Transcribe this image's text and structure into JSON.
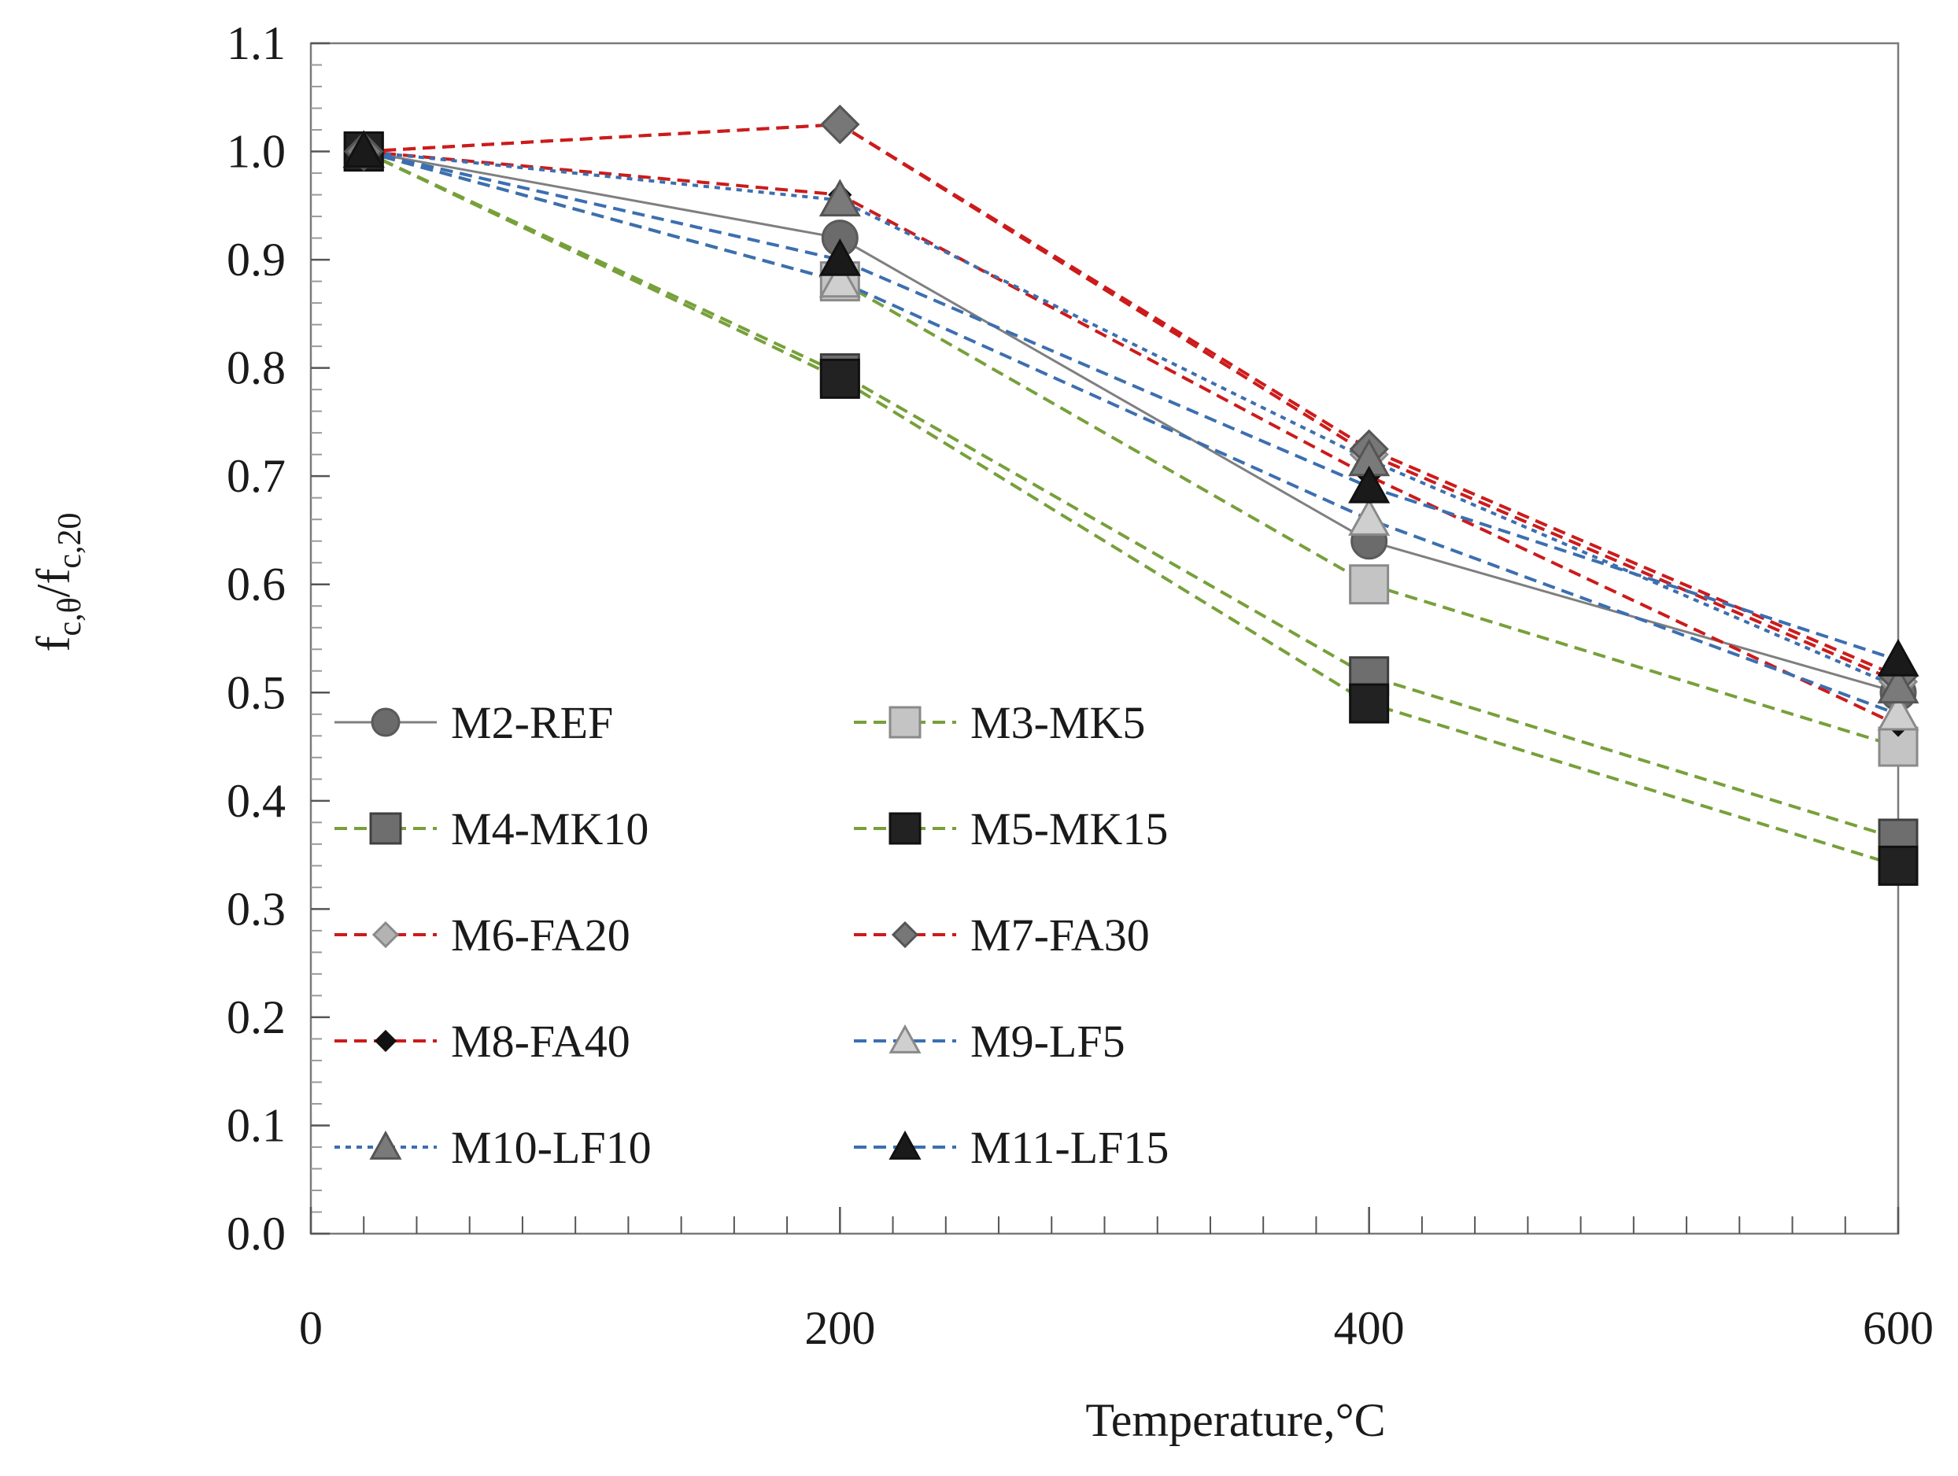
{
  "chart_data": {
    "type": "line",
    "title": "",
    "xlabel": "Temperature,°C",
    "ylabel": {
      "f1": "f",
      "sub1": "c,θ",
      "slash": "/",
      "f2": "f",
      "sub2": "c,20"
    },
    "xlim": [
      0,
      600
    ],
    "ylim": [
      0.0,
      1.1
    ],
    "x_ticks": [
      "0",
      "200",
      "400",
      "600"
    ],
    "y_ticks": [
      "0.0",
      "0.1",
      "0.2",
      "0.3",
      "0.4",
      "0.5",
      "0.6",
      "0.7",
      "0.8",
      "0.9",
      "1.0",
      "1.1"
    ],
    "grid": false,
    "legend_position": "lower-left",
    "x": [
      20,
      200,
      400,
      600
    ],
    "series": [
      {
        "name": "M2-REF",
        "values": [
          1.0,
          0.92,
          0.64,
          0.5
        ],
        "color": "#7f7f7f",
        "dash": "solid",
        "marker": "circle",
        "marker_fill": "#6b6b6b",
        "marker_stroke": "#5a5a5a"
      },
      {
        "name": "M3-MK5",
        "values": [
          1.0,
          0.88,
          0.6,
          0.45
        ],
        "color": "#77a03a",
        "dash": "dashed",
        "marker": "square",
        "marker_fill": "#c4c4c4",
        "marker_stroke": "#8a8a8a"
      },
      {
        "name": "M4-MK10",
        "values": [
          1.0,
          0.795,
          0.515,
          0.365
        ],
        "color": "#77a03a",
        "dash": "dashed",
        "marker": "square",
        "marker_fill": "#6e6e6e",
        "marker_stroke": "#404040"
      },
      {
        "name": "M5-MK15",
        "values": [
          1.0,
          0.79,
          0.49,
          0.34
        ],
        "color": "#77a03a",
        "dash": "dashed",
        "marker": "square",
        "marker_fill": "#222222",
        "marker_stroke": "#111111"
      },
      {
        "name": "M6-FA20",
        "values": [
          1.0,
          1.025,
          0.72,
          0.51
        ],
        "color": "#cc1b1b",
        "dash": "dashed",
        "marker": "diamond",
        "marker_fill": "#b3b3b3",
        "marker_stroke": "#8a8a8a"
      },
      {
        "name": "M7-FA30",
        "values": [
          1.0,
          1.025,
          0.725,
          0.515
        ],
        "color": "#cc1b1b",
        "dash": "dashed",
        "marker": "diamond",
        "marker_fill": "#777777",
        "marker_stroke": "#555555"
      },
      {
        "name": "M8-FA40",
        "values": [
          1.0,
          0.96,
          0.7,
          0.47
        ],
        "color": "#cc1b1b",
        "dash": "dashed",
        "marker": "diamond",
        "marker_fill": "#111111",
        "marker_stroke": "#111111"
      },
      {
        "name": "M9-LF5",
        "values": [
          1.0,
          0.88,
          0.66,
          0.48
        ],
        "color": "#3c6fb0",
        "dash": "dashed",
        "marker": "triangle",
        "marker_fill": "#cfcfcf",
        "marker_stroke": "#8a8a8a"
      },
      {
        "name": "M10-LF10",
        "values": [
          1.0,
          0.955,
          0.715,
          0.505
        ],
        "color": "#3c6fb0",
        "dash": "dotted",
        "marker": "triangle",
        "marker_fill": "#7a7a7a",
        "marker_stroke": "#555555"
      },
      {
        "name": "M11-LF15",
        "values": [
          1.0,
          0.9,
          0.69,
          0.53
        ],
        "color": "#3c6fb0",
        "dash": "dashed",
        "marker": "triangle",
        "marker_fill": "#1a1a1a",
        "marker_stroke": "#111111"
      }
    ]
  }
}
